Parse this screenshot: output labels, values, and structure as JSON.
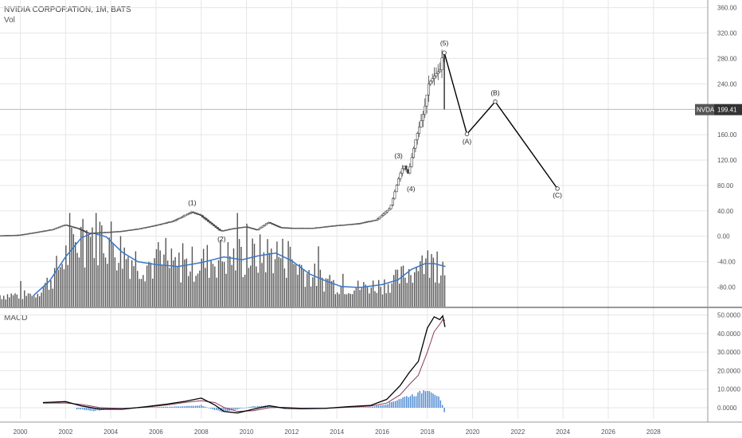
{
  "header": {
    "title": "NVIDIA CORPORATION, 1M, BATS",
    "volume_label": "Vol",
    "macd_label": "MACD"
  },
  "price_tag": {
    "symbol": "NVDA",
    "value": "199.41"
  },
  "colors": {
    "candle": "#444444",
    "volume_bar": "#555555",
    "volume_ma": "#3a78c8",
    "macd_line": "#000000",
    "signal_line": "#8a3a5a",
    "histogram": "#4a86d0",
    "grid": "#e6e6e6",
    "price_line": "#b8b8b8",
    "wave_line": "#000000"
  },
  "chart_data": [
    {
      "type": "line",
      "name": "price_panel",
      "description_of_series": "Monthly NVDA candles (approximated) with Elliott wave projection",
      "y_ticks": [
        "360.00",
        "320.00",
        "280.00",
        "240.00",
        "200.00",
        "160.00",
        "120.00",
        "80.00",
        "40.00",
        "0.00",
        "-40.00",
        "-80.00"
      ],
      "y_tick_values": [
        360,
        320,
        280,
        240,
        200,
        160,
        120,
        80,
        40,
        0,
        -40,
        -80
      ],
      "ylim": [
        -112,
        372
      ],
      "x_ticks": [
        "2000",
        "2002",
        "2004",
        "2006",
        "2008",
        "2010",
        "2012",
        "2014",
        "2016",
        "2018",
        "2020",
        "2022",
        "2024",
        "2026",
        "2028"
      ],
      "x_tick_values": [
        2000,
        2002,
        2004,
        2006,
        2008,
        2010,
        2012,
        2014,
        2016,
        2018,
        2020,
        2022,
        2024,
        2026,
        2028
      ],
      "xlim": [
        1999.1,
        2030.4
      ],
      "last_price": 199.41,
      "price_keyframes": [
        [
          1999.1,
          1
        ],
        [
          2000.0,
          2
        ],
        [
          2000.7,
          6
        ],
        [
          2001.5,
          11
        ],
        [
          2002.0,
          18
        ],
        [
          2002.6,
          12
        ],
        [
          2003.0,
          5
        ],
        [
          2003.7,
          6
        ],
        [
          2004.5,
          8
        ],
        [
          2005.3,
          12
        ],
        [
          2006.0,
          17
        ],
        [
          2006.8,
          24
        ],
        [
          2007.6,
          38
        ],
        [
          2008.0,
          33
        ],
        [
          2008.5,
          19
        ],
        [
          2008.9,
          8
        ],
        [
          2009.4,
          12
        ],
        [
          2010.0,
          15
        ],
        [
          2010.5,
          10
        ],
        [
          2011.0,
          22
        ],
        [
          2011.5,
          14
        ],
        [
          2012.0,
          13
        ],
        [
          2013.0,
          13
        ],
        [
          2014.0,
          17
        ],
        [
          2015.0,
          20
        ],
        [
          2015.8,
          26
        ],
        [
          2016.4,
          45
        ],
        [
          2016.8,
          95
        ],
        [
          2017.0,
          112
        ],
        [
          2017.2,
          98
        ],
        [
          2017.5,
          150
        ],
        [
          2017.9,
          198
        ],
        [
          2018.1,
          240
        ],
        [
          2018.4,
          255
        ],
        [
          2018.6,
          262
        ],
        [
          2018.72,
          289
        ]
      ],
      "wave_points": [
        {
          "label": "(5)",
          "x": 2018.75,
          "y": 289
        },
        {
          "label": "(A)",
          "x": 2019.75,
          "y": 161
        },
        {
          "label": "(B)",
          "x": 2021.0,
          "y": 212
        },
        {
          "label": "(C)",
          "x": 2023.75,
          "y": 75
        }
      ],
      "wave_labels": [
        {
          "label": "(1)",
          "x": 2007.6,
          "y": 38
        },
        {
          "label": "(2)",
          "x": 2008.9,
          "y": 6
        },
        {
          "label": "(3)",
          "x": 2016.9,
          "y": 112
        },
        {
          "label": "(4)",
          "x": 2017.1,
          "y": 96
        },
        {
          "label": "(5)",
          "x": 2018.75,
          "y": 289
        },
        {
          "label": "(A)",
          "x": 2019.75,
          "y": 161
        },
        {
          "label": "(B)",
          "x": 2021.0,
          "y": 212
        },
        {
          "label": "(C)",
          "x": 2023.75,
          "y": 75
        }
      ],
      "volume_ma_keyframes": [
        [
          2000.6,
          0.12
        ],
        [
          2001.3,
          0.27
        ],
        [
          2002.0,
          0.52
        ],
        [
          2002.7,
          0.72
        ],
        [
          2003.2,
          0.77
        ],
        [
          2003.8,
          0.73
        ],
        [
          2004.5,
          0.57
        ],
        [
          2005.2,
          0.47
        ],
        [
          2006.0,
          0.44
        ],
        [
          2007.0,
          0.42
        ],
        [
          2008.0,
          0.46
        ],
        [
          2009.0,
          0.52
        ],
        [
          2009.8,
          0.49
        ],
        [
          2010.5,
          0.53
        ],
        [
          2011.3,
          0.56
        ],
        [
          2012.0,
          0.48
        ],
        [
          2012.8,
          0.34
        ],
        [
          2013.6,
          0.26
        ],
        [
          2014.2,
          0.21
        ],
        [
          2015.0,
          0.2
        ],
        [
          2016.0,
          0.23
        ],
        [
          2016.7,
          0.28
        ],
        [
          2017.3,
          0.39
        ],
        [
          2017.9,
          0.45
        ],
        [
          2018.3,
          0.45
        ],
        [
          2018.8,
          0.42
        ]
      ]
    },
    {
      "type": "line",
      "name": "macd_panel",
      "y_ticks": [
        "50.0000",
        "40.0000",
        "30.0000",
        "20.0000",
        "10.0000",
        "0.0000"
      ],
      "y_tick_values": [
        50,
        40,
        30,
        20,
        10,
        0
      ],
      "ylim": [
        -6,
        51.5
      ],
      "series": [
        {
          "name": "MACD",
          "keyframes": [
            [
              2001.0,
              2.8
            ],
            [
              2002.0,
              3.3
            ],
            [
              2002.7,
              1.0
            ],
            [
              2003.5,
              -0.7
            ],
            [
              2004.5,
              -0.8
            ],
            [
              2005.5,
              0.5
            ],
            [
              2006.5,
              2.0
            ],
            [
              2007.3,
              3.5
            ],
            [
              2008.0,
              5.2
            ],
            [
              2008.6,
              1.5
            ],
            [
              2009.0,
              -2.0
            ],
            [
              2009.6,
              -2.8
            ],
            [
              2010.3,
              -0.8
            ],
            [
              2011.0,
              1.1
            ],
            [
              2011.7,
              -0.3
            ],
            [
              2012.5,
              -0.5
            ],
            [
              2013.5,
              -0.3
            ],
            [
              2014.5,
              0.6
            ],
            [
              2015.5,
              1.3
            ],
            [
              2016.2,
              4.5
            ],
            [
              2016.8,
              12
            ],
            [
              2017.2,
              19
            ],
            [
              2017.6,
              25
            ],
            [
              2018.0,
              43
            ],
            [
              2018.3,
              49
            ],
            [
              2018.55,
              47.5
            ],
            [
              2018.68,
              49.5
            ],
            [
              2018.78,
              43.5
            ]
          ]
        },
        {
          "name": "Signal",
          "keyframes": [
            [
              2001.0,
              2.5
            ],
            [
              2002.0,
              2.6
            ],
            [
              2002.7,
              1.8
            ],
            [
              2003.5,
              0.1
            ],
            [
              2004.5,
              -0.4
            ],
            [
              2005.5,
              0.2
            ],
            [
              2006.5,
              1.5
            ],
            [
              2007.3,
              2.9
            ],
            [
              2008.0,
              3.8
            ],
            [
              2008.6,
              2.8
            ],
            [
              2009.0,
              0.2
            ],
            [
              2009.6,
              -2.0
            ],
            [
              2010.3,
              -1.6
            ],
            [
              2011.0,
              0.0
            ],
            [
              2011.7,
              0.3
            ],
            [
              2012.5,
              -0.3
            ],
            [
              2013.5,
              -0.3
            ],
            [
              2014.5,
              0.3
            ],
            [
              2015.5,
              0.9
            ],
            [
              2016.2,
              2.5
            ],
            [
              2016.8,
              7.0
            ],
            [
              2017.2,
              12.5
            ],
            [
              2017.6,
              17.5
            ],
            [
              2018.0,
              30
            ],
            [
              2018.3,
              41
            ],
            [
              2018.55,
              45
            ],
            [
              2018.68,
              47.5
            ],
            [
              2018.78,
              47.0
            ]
          ]
        },
        {
          "name": "Histogram",
          "keyframes": [
            [
              2002.7,
              -0.8
            ],
            [
              2003.2,
              -1.8
            ],
            [
              2003.8,
              -1.0
            ],
            [
              2004.5,
              -0.3
            ],
            [
              2005.5,
              0.3
            ],
            [
              2006.5,
              0.5
            ],
            [
              2007.3,
              0.8
            ],
            [
              2008.0,
              1.4
            ],
            [
              2008.6,
              -1.3
            ],
            [
              2009.0,
              -2.2
            ],
            [
              2009.6,
              -0.8
            ],
            [
              2010.3,
              0.8
            ],
            [
              2011.0,
              1.1
            ],
            [
              2011.7,
              -0.6
            ],
            [
              2012.5,
              -0.2
            ],
            [
              2013.5,
              0.0
            ],
            [
              2014.5,
              0.3
            ],
            [
              2015.5,
              0.4
            ],
            [
              2016.2,
              2.0
            ],
            [
              2016.8,
              5.0
            ],
            [
              2017.2,
              6.5
            ],
            [
              2017.6,
              7.5
            ],
            [
              2018.0,
              10.5
            ],
            [
              2018.2,
              9.0
            ],
            [
              2018.45,
              6.5
            ],
            [
              2018.65,
              2.0
            ],
            [
              2018.78,
              -3.5
            ]
          ]
        }
      ]
    }
  ]
}
